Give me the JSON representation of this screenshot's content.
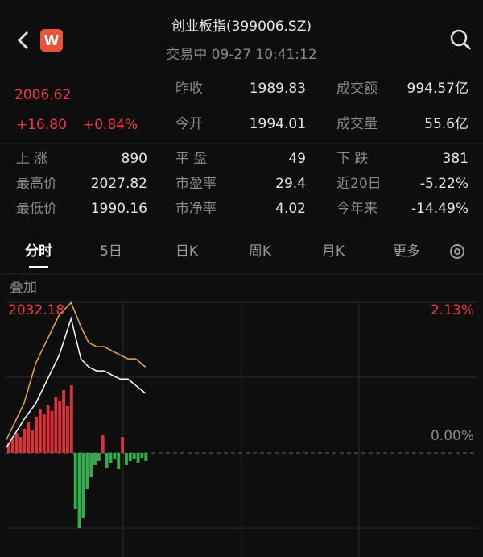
{
  "header": {
    "title": "创业板指(399006.SZ)",
    "subtitle": "交易中 09-27 10:41:12",
    "badge": "W"
  },
  "quote": {
    "price": 2006.62,
    "change": "+16.80",
    "change_pct": "+0.84%",
    "stats": [
      [
        "昨收",
        1989.83,
        "成交额",
        "994.57亿"
      ],
      [
        "今开",
        1994.01,
        "成交量",
        "55.6亿"
      ]
    ],
    "grid": [
      [
        "上 涨",
        890,
        "平 盘",
        49,
        "下 跌",
        381
      ],
      [
        "最高价",
        2027.82,
        "市盈率",
        29.4,
        "近20日",
        "-5.22%"
      ],
      [
        "最低价",
        1990.16,
        "市净率",
        4.02,
        "今年来",
        "-14.49%"
      ]
    ]
  },
  "tabs": [
    "分时",
    "5日",
    "日K",
    "周K",
    "月K",
    "更多"
  ],
  "chart": {
    "overlay_label": "叠加",
    "top_value": 2032.18,
    "top_pct": "2.13%",
    "zero_pct": "0.00%",
    "base": 1989.83,
    "xlim": [
      0,
      240
    ],
    "x": [
      0,
      9,
      15,
      21,
      27,
      33,
      38,
      42,
      46,
      50,
      54,
      58,
      62,
      66,
      71
    ],
    "lines": [
      {
        "color": "#ffffff",
        "values": [
          1991.4,
          1999.3,
          2003.8,
          2010.6,
          2017.4,
          2027.6,
          2016.3,
          2014.0,
          2012.9,
          2012.9,
          2011.7,
          2010.6,
          2010.6,
          2008.8,
          2006.6
        ]
      },
      {
        "color": "#e8a64a",
        "values": [
          1993.6,
          2003.8,
          2015.1,
          2021.9,
          2028.7,
          2032.1,
          2025.3,
          2020.8,
          2019.7,
          2019.7,
          2018.5,
          2017.4,
          2016.3,
          2016.3,
          2014.0
        ]
      }
    ],
    "bars": {
      "ylim": [
        -100,
        100
      ],
      "x": [
        0,
        2,
        4,
        6,
        8,
        10,
        12,
        14,
        16,
        18,
        20,
        22,
        24,
        26,
        28,
        30,
        32,
        34,
        36,
        38,
        40,
        42,
        44,
        46,
        48,
        50,
        52,
        54,
        56,
        58,
        60,
        62,
        64,
        66,
        68,
        70
      ],
      "values": [
        12,
        18,
        25,
        20,
        30,
        38,
        28,
        45,
        55,
        48,
        60,
        52,
        70,
        64,
        78,
        58,
        84,
        -70,
        -93,
        -80,
        -45,
        -30,
        -15,
        -10,
        22,
        -18,
        -12,
        -8,
        -20,
        20,
        -15,
        -10,
        -8,
        -12,
        -6,
        -10
      ]
    }
  }
}
